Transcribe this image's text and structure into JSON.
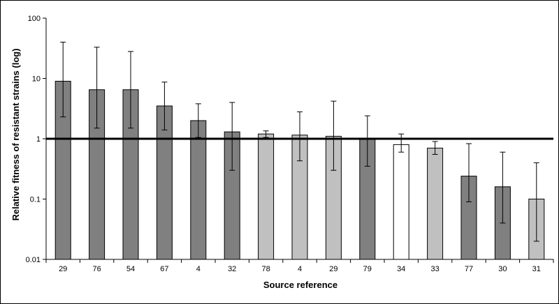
{
  "chart_data": {
    "type": "bar",
    "xlabel": "Source reference",
    "ylabel": "Relative fitness of resistant strains (log)",
    "y_scale": "log",
    "ylim": [
      0.01,
      100
    ],
    "y_ticks": [
      "0.01",
      "0.1",
      "1",
      "10",
      "100"
    ],
    "reference_line": 1,
    "grid": false,
    "legend": "none",
    "bar_colors": {
      "dark": "#808080",
      "light": "#c0c0c0",
      "white": "#ffffff"
    },
    "categories": [
      "29",
      "76",
      "54",
      "67",
      "4",
      "32",
      "78",
      "4",
      "29",
      "79",
      "34",
      "33",
      "77",
      "30",
      "31"
    ],
    "values": [
      9,
      6.5,
      6.5,
      3.5,
      2.0,
      1.3,
      1.2,
      1.15,
      1.1,
      1.0,
      0.8,
      0.7,
      0.24,
      0.16,
      0.1
    ],
    "error_low": [
      2.3,
      1.5,
      1.5,
      1.4,
      1.05,
      0.3,
      1.05,
      0.43,
      0.3,
      0.35,
      0.6,
      0.55,
      0.09,
      0.04,
      0.02
    ],
    "error_high": [
      40,
      33,
      28,
      8.7,
      3.8,
      4.0,
      1.35,
      2.8,
      4.2,
      2.4,
      1.2,
      0.9,
      0.83,
      0.6,
      0.4
    ],
    "bar_shades": [
      "dark",
      "dark",
      "dark",
      "dark",
      "dark",
      "dark",
      "light",
      "light",
      "light",
      "dark",
      "white",
      "light",
      "dark",
      "dark",
      "light"
    ]
  }
}
